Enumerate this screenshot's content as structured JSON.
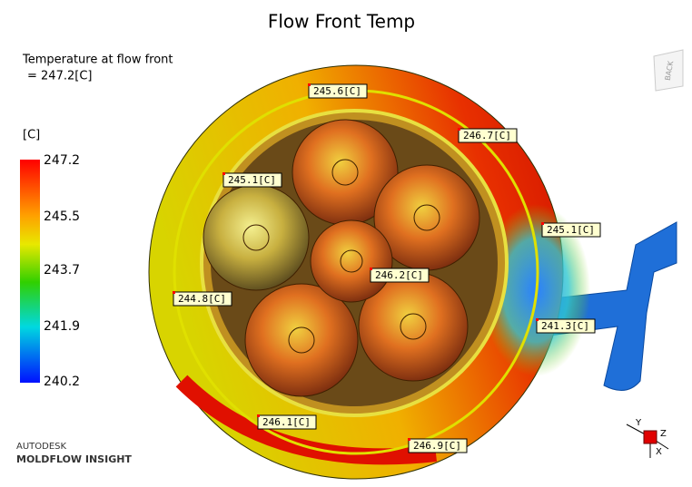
{
  "header": {
    "title": "Flow Front Temp"
  },
  "result": {
    "label": "Temperature at flow front",
    "value_line": "= 247.2[C]"
  },
  "legend": {
    "unit": "[C]",
    "ticks": [
      "247.2",
      "245.5",
      "243.7",
      "241.9",
      "240.2"
    ]
  },
  "probes": [
    "245.6[C]",
    "246.7[C]",
    "245.1[C]",
    "245.1[C]",
    "246.2[C]",
    "244.8[C]",
    "241.3[C]",
    "246.1[C]",
    "246.9[C]"
  ],
  "brand": {
    "company": "AUTODESK",
    "product": "MOLDFLOW INSIGHT"
  },
  "view_cube": "BACK",
  "axes": {
    "y": "Y",
    "z": "Z",
    "x": "X"
  }
}
